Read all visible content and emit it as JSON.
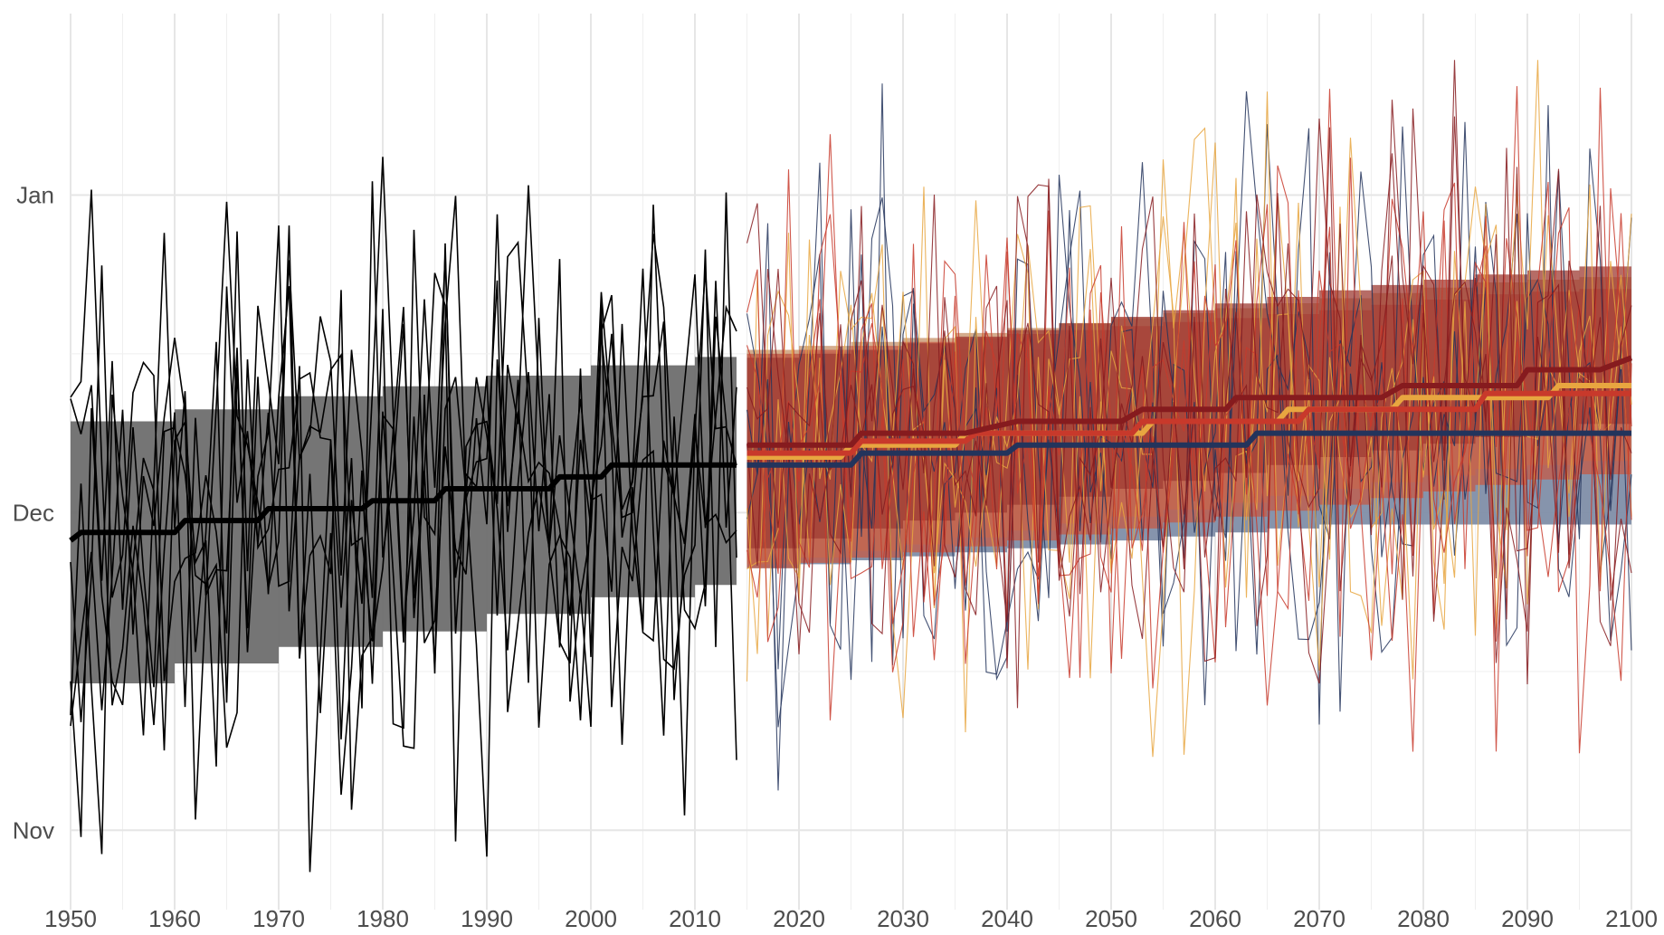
{
  "chart_data": {
    "type": "line",
    "title": "",
    "xlabel": "",
    "ylabel": "",
    "xlim": [
      1950,
      2100
    ],
    "ylim": [
      0,
      11
    ],
    "x_ticks": [
      1950,
      1960,
      1970,
      1980,
      1990,
      2000,
      2010,
      2020,
      2030,
      2040,
      2050,
      2060,
      2070,
      2080,
      2090,
      2100
    ],
    "x_tick_labels": [
      "1950",
      "1960",
      "1970",
      "1980",
      "1990",
      "2000",
      "2010",
      "2020",
      "2030",
      "2040",
      "2050",
      "2060",
      "2070",
      "2080",
      "2090",
      "2100"
    ],
    "y_ticks": [
      1,
      5,
      9
    ],
    "y_tick_labels": [
      "Nov",
      "Dec",
      "Jan"
    ],
    "y_minor_ticks": [
      3,
      7
    ],
    "grid": true,
    "legend": "none",
    "historical": {
      "color": "#000000",
      "band_color": "#6e6e6e",
      "years": [
        1950,
        2014
      ],
      "median_steps": [
        [
          1950,
          4.65
        ],
        [
          1951,
          4.75
        ],
        [
          1960,
          4.75
        ],
        [
          1961,
          4.9
        ],
        [
          1968,
          4.9
        ],
        [
          1969,
          5.05
        ],
        [
          1978,
          5.05
        ],
        [
          1979,
          5.15
        ],
        [
          1985,
          5.15
        ],
        [
          1986,
          5.3
        ],
        [
          1996,
          5.3
        ],
        [
          1997,
          5.45
        ],
        [
          2001,
          5.45
        ],
        [
          2002,
          5.6
        ],
        [
          2014,
          5.6
        ]
      ],
      "band_upper": [
        [
          1950,
          6.15
        ],
        [
          1960,
          6.3
        ],
        [
          1972,
          6.5
        ],
        [
          1985,
          6.65
        ],
        [
          1995,
          6.8
        ],
        [
          2004,
          6.9
        ],
        [
          2014,
          7.0
        ]
      ],
      "band_lower": [
        [
          1950,
          2.85
        ],
        [
          1960,
          3.1
        ],
        [
          1972,
          3.35
        ],
        [
          1985,
          3.6
        ],
        [
          1995,
          3.85
        ],
        [
          2004,
          4.0
        ],
        [
          2014,
          4.15
        ]
      ]
    },
    "scenarios": [
      {
        "color": "#23345c",
        "band_color": "#7f8ea8",
        "median_steps": [
          [
            2015,
            5.6
          ],
          [
            2025,
            5.6
          ],
          [
            2026,
            5.75
          ],
          [
            2040,
            5.75
          ],
          [
            2041,
            5.85
          ],
          [
            2063,
            5.85
          ],
          [
            2064,
            6.0
          ],
          [
            2100,
            6.0
          ]
        ],
        "band_upper": [
          [
            2015,
            7.0
          ],
          [
            2030,
            7.05
          ],
          [
            2050,
            7.05
          ],
          [
            2070,
            7.05
          ],
          [
            2100,
            7.05
          ]
        ],
        "band_lower": [
          [
            2015,
            4.3
          ],
          [
            2030,
            4.45
          ],
          [
            2050,
            4.65
          ],
          [
            2070,
            4.85
          ],
          [
            2100,
            4.85
          ]
        ]
      },
      {
        "color": "#e8a640",
        "band_color": "#c69067",
        "median_steps": [
          [
            2015,
            5.7
          ],
          [
            2024,
            5.7
          ],
          [
            2025,
            5.85
          ],
          [
            2035,
            5.85
          ],
          [
            2036,
            6.0
          ],
          [
            2053,
            6.0
          ],
          [
            2054,
            6.15
          ],
          [
            2066,
            6.15
          ],
          [
            2067,
            6.3
          ],
          [
            2077,
            6.3
          ],
          [
            2078,
            6.45
          ],
          [
            2092,
            6.45
          ],
          [
            2093,
            6.6
          ],
          [
            2100,
            6.6
          ]
        ],
        "band_upper": [
          [
            2015,
            7.05
          ],
          [
            2030,
            7.2
          ],
          [
            2050,
            7.45
          ],
          [
            2070,
            7.7
          ],
          [
            2085,
            7.9
          ],
          [
            2100,
            8.0
          ]
        ],
        "band_lower": [
          [
            2015,
            4.35
          ],
          [
            2030,
            4.6
          ],
          [
            2050,
            4.95
          ],
          [
            2070,
            5.3
          ],
          [
            2085,
            5.55
          ],
          [
            2100,
            5.7
          ]
        ]
      },
      {
        "color": "#c8392b",
        "band_color": "#c45a45",
        "median_steps": [
          [
            2015,
            5.75
          ],
          [
            2025,
            5.75
          ],
          [
            2026,
            5.9
          ],
          [
            2036,
            5.9
          ],
          [
            2037,
            6.0
          ],
          [
            2052,
            6.0
          ],
          [
            2053,
            6.15
          ],
          [
            2068,
            6.15
          ],
          [
            2069,
            6.3
          ],
          [
            2085,
            6.3
          ],
          [
            2086,
            6.5
          ],
          [
            2100,
            6.5
          ]
        ],
        "band_upper": [
          [
            2015,
            7.0
          ],
          [
            2030,
            7.15
          ],
          [
            2050,
            7.35
          ],
          [
            2070,
            7.55
          ],
          [
            2085,
            7.75
          ],
          [
            2100,
            7.85
          ]
        ],
        "band_lower": [
          [
            2015,
            4.3
          ],
          [
            2030,
            4.5
          ],
          [
            2050,
            4.8
          ],
          [
            2070,
            5.1
          ],
          [
            2085,
            5.35
          ],
          [
            2100,
            5.55
          ]
        ]
      },
      {
        "color": "#861b1e",
        "band_color": "#9e3b33",
        "median_steps": [
          [
            2015,
            5.85
          ],
          [
            2025,
            5.85
          ],
          [
            2026,
            6.0
          ],
          [
            2036,
            6.0
          ],
          [
            2041,
            6.15
          ],
          [
            2051,
            6.15
          ],
          [
            2053,
            6.3
          ],
          [
            2061,
            6.3
          ],
          [
            2062,
            6.45
          ],
          [
            2076,
            6.45
          ],
          [
            2078,
            6.6
          ],
          [
            2089,
            6.6
          ],
          [
            2090,
            6.8
          ],
          [
            2097,
            6.8
          ],
          [
            2100,
            6.95
          ]
        ],
        "band_upper": [
          [
            2015,
            6.95
          ],
          [
            2025,
            7.05
          ],
          [
            2040,
            7.3
          ],
          [
            2055,
            7.55
          ],
          [
            2070,
            7.8
          ],
          [
            2085,
            8.0
          ],
          [
            2100,
            8.15
          ]
        ],
        "band_lower": [
          [
            2015,
            4.55
          ],
          [
            2025,
            4.8
          ],
          [
            2040,
            5.1
          ],
          [
            2055,
            5.4
          ],
          [
            2070,
            5.7
          ],
          [
            2085,
            5.95
          ],
          [
            2100,
            6.2
          ]
        ]
      }
    ]
  }
}
